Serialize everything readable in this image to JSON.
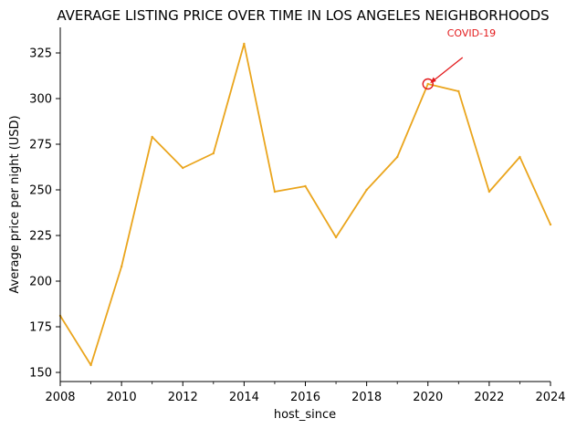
{
  "chart_data": {
    "type": "line",
    "title": "AVERAGE LISTING PRICE OVER TIME IN LOS ANGELES NEIGHBORHOODS",
    "xlabel": "host_since",
    "ylabel": "Average price per night (USD)",
    "xlim": [
      2008,
      2024
    ],
    "ylim": [
      145,
      339
    ],
    "x_ticks": [
      "2008",
      "2010",
      "2012",
      "2014",
      "2016",
      "2018",
      "2020",
      "2022",
      "2024"
    ],
    "y_ticks": [
      "150",
      "175",
      "200",
      "225",
      "250",
      "275",
      "300",
      "325"
    ],
    "grid": false,
    "series": [
      {
        "color": "#EAA51D",
        "x": [
          2008,
          2009,
          2010,
          2011,
          2012,
          2013,
          2014,
          2015,
          2016,
          2017,
          2018,
          2019,
          2020,
          2021,
          2022,
          2023,
          2024
        ],
        "values": [
          181,
          154,
          208,
          279,
          262,
          270,
          330,
          249,
          252,
          224,
          250,
          268,
          308,
          304,
          249,
          268,
          231
        ]
      }
    ],
    "annotation": {
      "text": "COVID-19",
      "x": 2020,
      "y": 308,
      "color": "#E31A1C"
    }
  }
}
